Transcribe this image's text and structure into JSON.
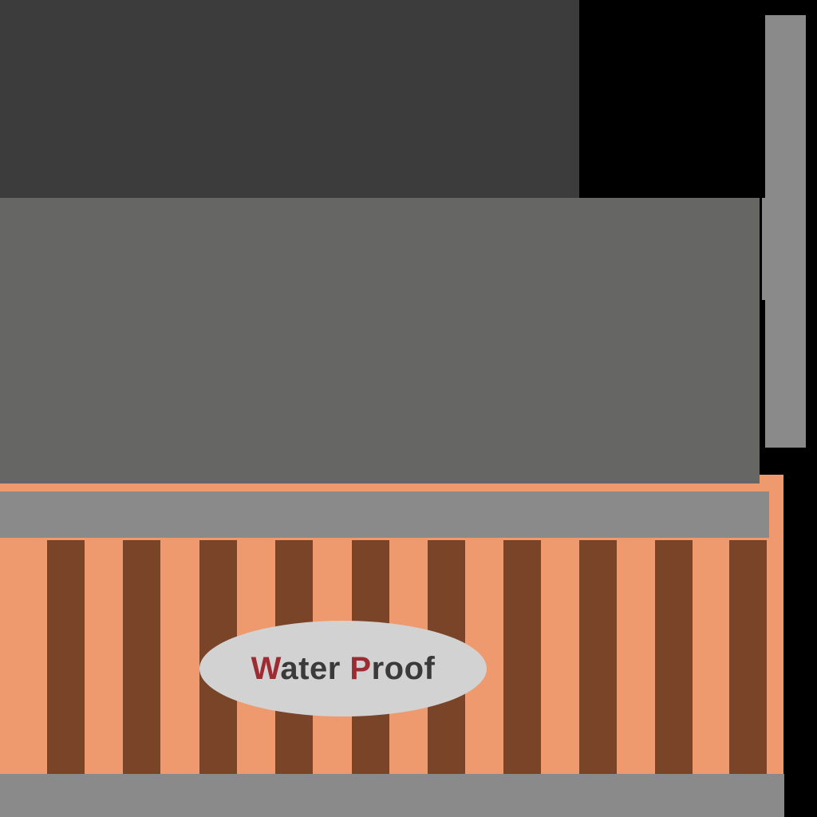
{
  "label": {
    "word1_initial": "W",
    "word1_rest": "ater",
    "word2_initial": "P",
    "word2_rest": "roof"
  },
  "colors": {
    "accent": "#9b2c33",
    "text": "#3a3a3a",
    "orange": "#ee9a6e",
    "stripe": "#7a4428",
    "rail": "#8a8a8a"
  }
}
